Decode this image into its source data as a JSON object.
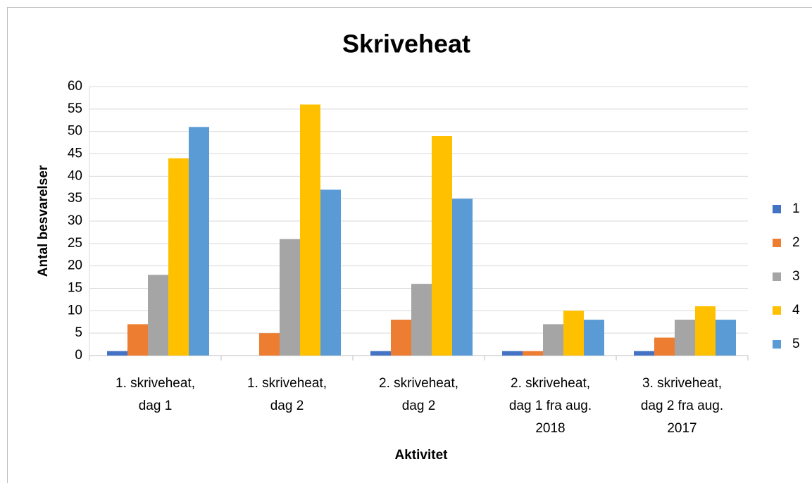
{
  "chart_data": {
    "type": "bar",
    "title": "Skriveheat",
    "x_label": "Aktivitet",
    "y_label": "Antal besvarelser",
    "categories": [
      "1. skriveheat,\ndag 1",
      "1. skriveheat,\ndag 2",
      "2. skriveheat,\ndag 2",
      "2. skriveheat,\ndag 1 fra aug.\n2018",
      "3. skriveheat,\ndag 2 fra aug.\n2017"
    ],
    "series": [
      {
        "name": "1",
        "color": "#4472c4",
        "values": [
          1,
          0,
          1,
          1,
          1
        ]
      },
      {
        "name": "2",
        "color": "#ed7d31",
        "values": [
          7,
          5,
          8,
          1,
          4
        ]
      },
      {
        "name": "3",
        "color": "#a5a5a5",
        "values": [
          18,
          26,
          16,
          7,
          8
        ]
      },
      {
        "name": "4",
        "color": "#ffc000",
        "values": [
          44,
          56,
          49,
          10,
          11
        ]
      },
      {
        "name": "5",
        "color": "#5b9bd5",
        "values": [
          51,
          37,
          35,
          8,
          8
        ]
      }
    ],
    "ylim": [
      0,
      60
    ],
    "yticks": [
      0,
      5,
      10,
      15,
      20,
      25,
      30,
      35,
      40,
      45,
      50,
      55,
      60
    ],
    "grid": true,
    "legend": "right"
  }
}
